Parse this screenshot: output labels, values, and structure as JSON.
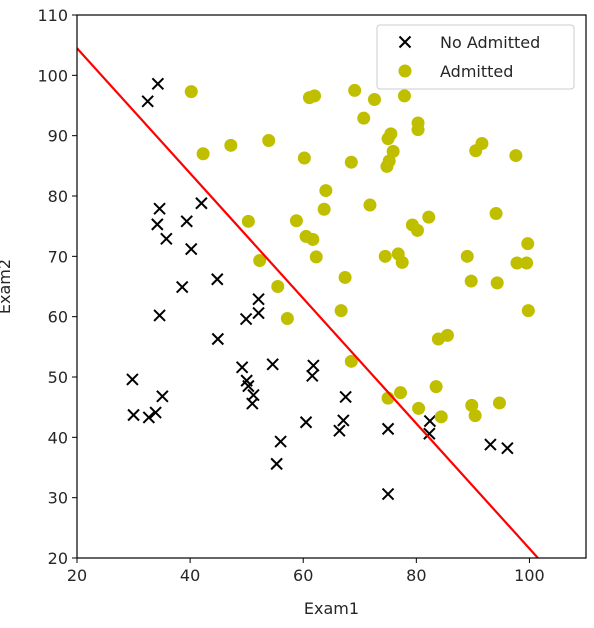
{
  "chart_data": {
    "type": "scatter",
    "xlabel": "Exam1",
    "ylabel": "Exam2",
    "xlim": [
      20,
      110
    ],
    "ylim": [
      20,
      110
    ],
    "xticks": [
      20,
      40,
      60,
      80,
      100
    ],
    "yticks": [
      20,
      30,
      40,
      50,
      60,
      70,
      80,
      90,
      100,
      110
    ],
    "legend_position": "top-right",
    "grid": false,
    "series": [
      {
        "name": "No Admitted",
        "marker": "x",
        "color": "#000000",
        "points": [
          [
            34.3,
            98.6
          ],
          [
            32.5,
            95.7
          ],
          [
            34.6,
            77.9
          ],
          [
            34.2,
            75.3
          ],
          [
            35.8,
            72.9
          ],
          [
            42.0,
            78.8
          ],
          [
            39.4,
            75.8
          ],
          [
            40.2,
            71.2
          ],
          [
            38.6,
            64.9
          ],
          [
            44.8,
            66.2
          ],
          [
            34.6,
            60.2
          ],
          [
            44.9,
            56.3
          ],
          [
            52.1,
            62.9
          ],
          [
            52.1,
            60.6
          ],
          [
            49.9,
            59.6
          ],
          [
            29.8,
            49.6
          ],
          [
            30.0,
            43.7
          ],
          [
            32.7,
            43.3
          ],
          [
            33.9,
            44.1
          ],
          [
            35.1,
            46.8
          ],
          [
            49.2,
            51.6
          ],
          [
            50.0,
            49.4
          ],
          [
            50.3,
            48.5
          ],
          [
            51.2,
            47.0
          ],
          [
            51.0,
            45.6
          ],
          [
            54.6,
            52.1
          ],
          [
            61.8,
            51.9
          ],
          [
            61.6,
            50.2
          ],
          [
            67.5,
            46.7
          ],
          [
            67.1,
            42.8
          ],
          [
            66.4,
            41.1
          ],
          [
            60.5,
            42.5
          ],
          [
            56.0,
            39.3
          ],
          [
            55.3,
            35.6
          ],
          [
            75.0,
            41.4
          ],
          [
            75.0,
            30.6
          ],
          [
            82.4,
            42.7
          ],
          [
            82.3,
            40.6
          ],
          [
            93.1,
            38.8
          ],
          [
            96.1,
            38.2
          ]
        ]
      },
      {
        "name": "Admitted",
        "marker": "o",
        "color": "#bfbf00",
        "points": [
          [
            40.2,
            97.3
          ],
          [
            42.3,
            87.0
          ],
          [
            47.2,
            88.4
          ],
          [
            53.9,
            89.2
          ],
          [
            61.1,
            96.3
          ],
          [
            62.0,
            96.6
          ],
          [
            69.1,
            97.5
          ],
          [
            72.6,
            96.0
          ],
          [
            77.9,
            96.6
          ],
          [
            70.7,
            92.9
          ],
          [
            80.3,
            92.1
          ],
          [
            80.3,
            91.0
          ],
          [
            75.5,
            90.3
          ],
          [
            75.0,
            89.5
          ],
          [
            75.9,
            87.4
          ],
          [
            75.2,
            85.8
          ],
          [
            74.8,
            84.9
          ],
          [
            60.2,
            86.3
          ],
          [
            68.5,
            85.6
          ],
          [
            91.6,
            88.7
          ],
          [
            90.5,
            87.5
          ],
          [
            97.6,
            86.7
          ],
          [
            64.0,
            80.9
          ],
          [
            71.8,
            78.5
          ],
          [
            63.7,
            77.8
          ],
          [
            50.3,
            75.8
          ],
          [
            58.8,
            75.9
          ],
          [
            82.2,
            76.5
          ],
          [
            79.3,
            75.2
          ],
          [
            80.2,
            74.3
          ],
          [
            94.1,
            77.1
          ],
          [
            60.5,
            73.3
          ],
          [
            61.7,
            72.8
          ],
          [
            99.7,
            72.1
          ],
          [
            74.5,
            70.0
          ],
          [
            62.3,
            69.9
          ],
          [
            52.3,
            69.3
          ],
          [
            76.8,
            70.4
          ],
          [
            77.5,
            69.0
          ],
          [
            89.0,
            70.0
          ],
          [
            97.8,
            68.9
          ],
          [
            99.5,
            68.9
          ],
          [
            67.4,
            66.5
          ],
          [
            89.7,
            65.9
          ],
          [
            94.3,
            65.6
          ],
          [
            55.5,
            65.0
          ],
          [
            66.7,
            61.0
          ],
          [
            57.2,
            59.7
          ],
          [
            99.8,
            61.0
          ],
          [
            83.9,
            56.3
          ],
          [
            85.5,
            56.9
          ],
          [
            68.5,
            52.6
          ],
          [
            83.5,
            48.4
          ],
          [
            77.2,
            47.4
          ],
          [
            75.0,
            46.5
          ],
          [
            89.8,
            45.3
          ],
          [
            94.7,
            45.7
          ],
          [
            80.4,
            44.8
          ],
          [
            84.4,
            43.4
          ],
          [
            90.4,
            43.6
          ]
        ]
      }
    ],
    "boundary_line": {
      "color": "#ff0000",
      "points": [
        [
          20,
          104.5
        ],
        [
          101.5,
          20
        ]
      ]
    }
  }
}
